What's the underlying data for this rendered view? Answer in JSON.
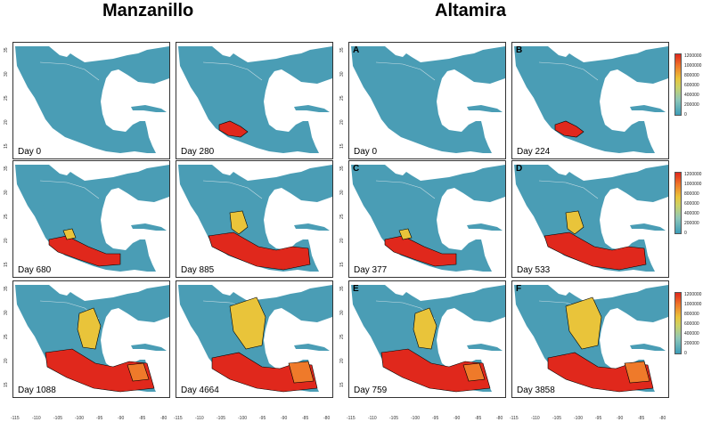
{
  "titles": {
    "left": "Manzanillo",
    "right": "Altamira"
  },
  "panels": [
    {
      "day": "Day 0",
      "letter": "",
      "spread": 0
    },
    {
      "day": "Day 280",
      "letter": "",
      "spread": 1
    },
    {
      "day": "Day 0",
      "letter": "A",
      "spread": 0
    },
    {
      "day": "Day 224",
      "letter": "B",
      "spread": 1
    },
    {
      "day": "Day 680",
      "letter": "",
      "spread": 2
    },
    {
      "day": "Day 885",
      "letter": "",
      "spread": 3
    },
    {
      "day": "Day 377",
      "letter": "C",
      "spread": 2
    },
    {
      "day": "Day 533",
      "letter": "D",
      "spread": 3
    },
    {
      "day": "Day 1088",
      "letter": "",
      "spread": 4
    },
    {
      "day": "Day 4664",
      "letter": "",
      "spread": 5
    },
    {
      "day": "Day 759",
      "letter": "E",
      "spread": 4
    },
    {
      "day": "Day 3858",
      "letter": "F",
      "spread": 5
    }
  ],
  "y_ticks": [
    "35",
    "30",
    "25",
    "20",
    "15"
  ],
  "x_ticks": [
    "-115",
    "-110",
    "-105",
    "-100",
    "-95",
    "-90",
    "-85",
    "-80"
  ],
  "legend_labels": [
    "1200000",
    "1000000",
    "800000",
    "600000",
    "400000",
    "200000",
    "0"
  ],
  "colors": {
    "land": "#4a9db5",
    "sea": "#ffffff",
    "hot": "#e0281c",
    "mid": "#e9c43a",
    "warm": "#ef7a2a",
    "border": "#000000"
  }
}
